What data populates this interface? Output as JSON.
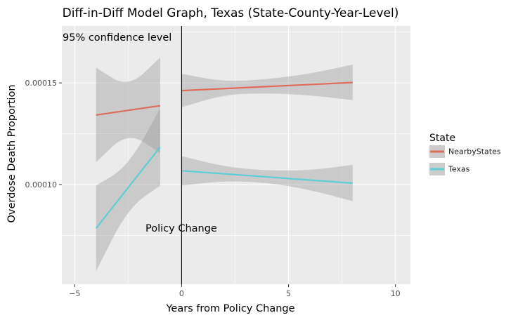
{
  "chart_data": {
    "type": "line",
    "title": "Diff-in-Diff Model Graph, Texas (State-County-Year-Level)",
    "xlabel": "Years from Policy Change",
    "ylabel": "Overdose Death Proportion",
    "xlim": [
      -5.6,
      10.7
    ],
    "ylim": [
      5.1e-05,
      0.000178
    ],
    "x_ticks": [
      -5,
      0,
      5,
      10
    ],
    "x_tick_labels": [
      "−5",
      "0",
      "5",
      "10"
    ],
    "y_ticks": [
      0.0001,
      0.00015
    ],
    "y_tick_labels": [
      "0.00010",
      "0.00015"
    ],
    "grid": true,
    "legend": {
      "title": "State",
      "position": "right"
    },
    "vline": {
      "x": 0,
      "label": "Policy Change"
    },
    "annotation": "95% confidence level",
    "series": [
      {
        "name": "NearbyStates",
        "color": "#e06b5b",
        "segments": [
          {
            "x": [
              -4,
              -2.5,
              -1
            ],
            "y": [
              0.0001342,
              0.0001365,
              0.0001388
            ],
            "lower": [
              0.000111,
              0.000126,
              0.0001155
            ],
            "upper": [
              0.0001575,
              0.0001475,
              0.0001625
            ]
          },
          {
            "x": [
              0,
              2,
              4,
              6,
              8
            ],
            "y": [
              0.0001462,
              0.0001472,
              0.0001482,
              0.0001492,
              0.0001502
            ],
            "lower": [
              0.000138,
              0.0001443,
              0.000145,
              0.000144,
              0.0001415
            ],
            "upper": [
              0.0001545,
              0.0001505,
              0.0001518,
              0.0001545,
              0.000159
            ]
          }
        ]
      },
      {
        "name": "Texas",
        "color": "#5ccfd6",
        "segments": [
          {
            "x": [
              -4,
              -2.5,
              -1
            ],
            "y": [
              7.85e-05,
              9.85e-05,
              0.0001185
            ],
            "lower": [
              5.75e-05,
              8.85e-05,
              9.95e-05
            ],
            "upper": [
              9.95e-05,
              0.000109,
              0.0001375
            ]
          },
          {
            "x": [
              0,
              2,
              4,
              6,
              8
            ],
            "y": [
              0.0001068,
              0.0001053,
              0.0001038,
              0.0001023,
              0.0001007
            ],
            "lower": [
              9.95e-05,
              0.0001018,
              0.000101,
              9.75e-05,
              9.18e-05
            ],
            "upper": [
              0.000114,
              0.0001088,
              0.0001068,
              0.000107,
              0.0001097
            ]
          }
        ]
      }
    ]
  }
}
